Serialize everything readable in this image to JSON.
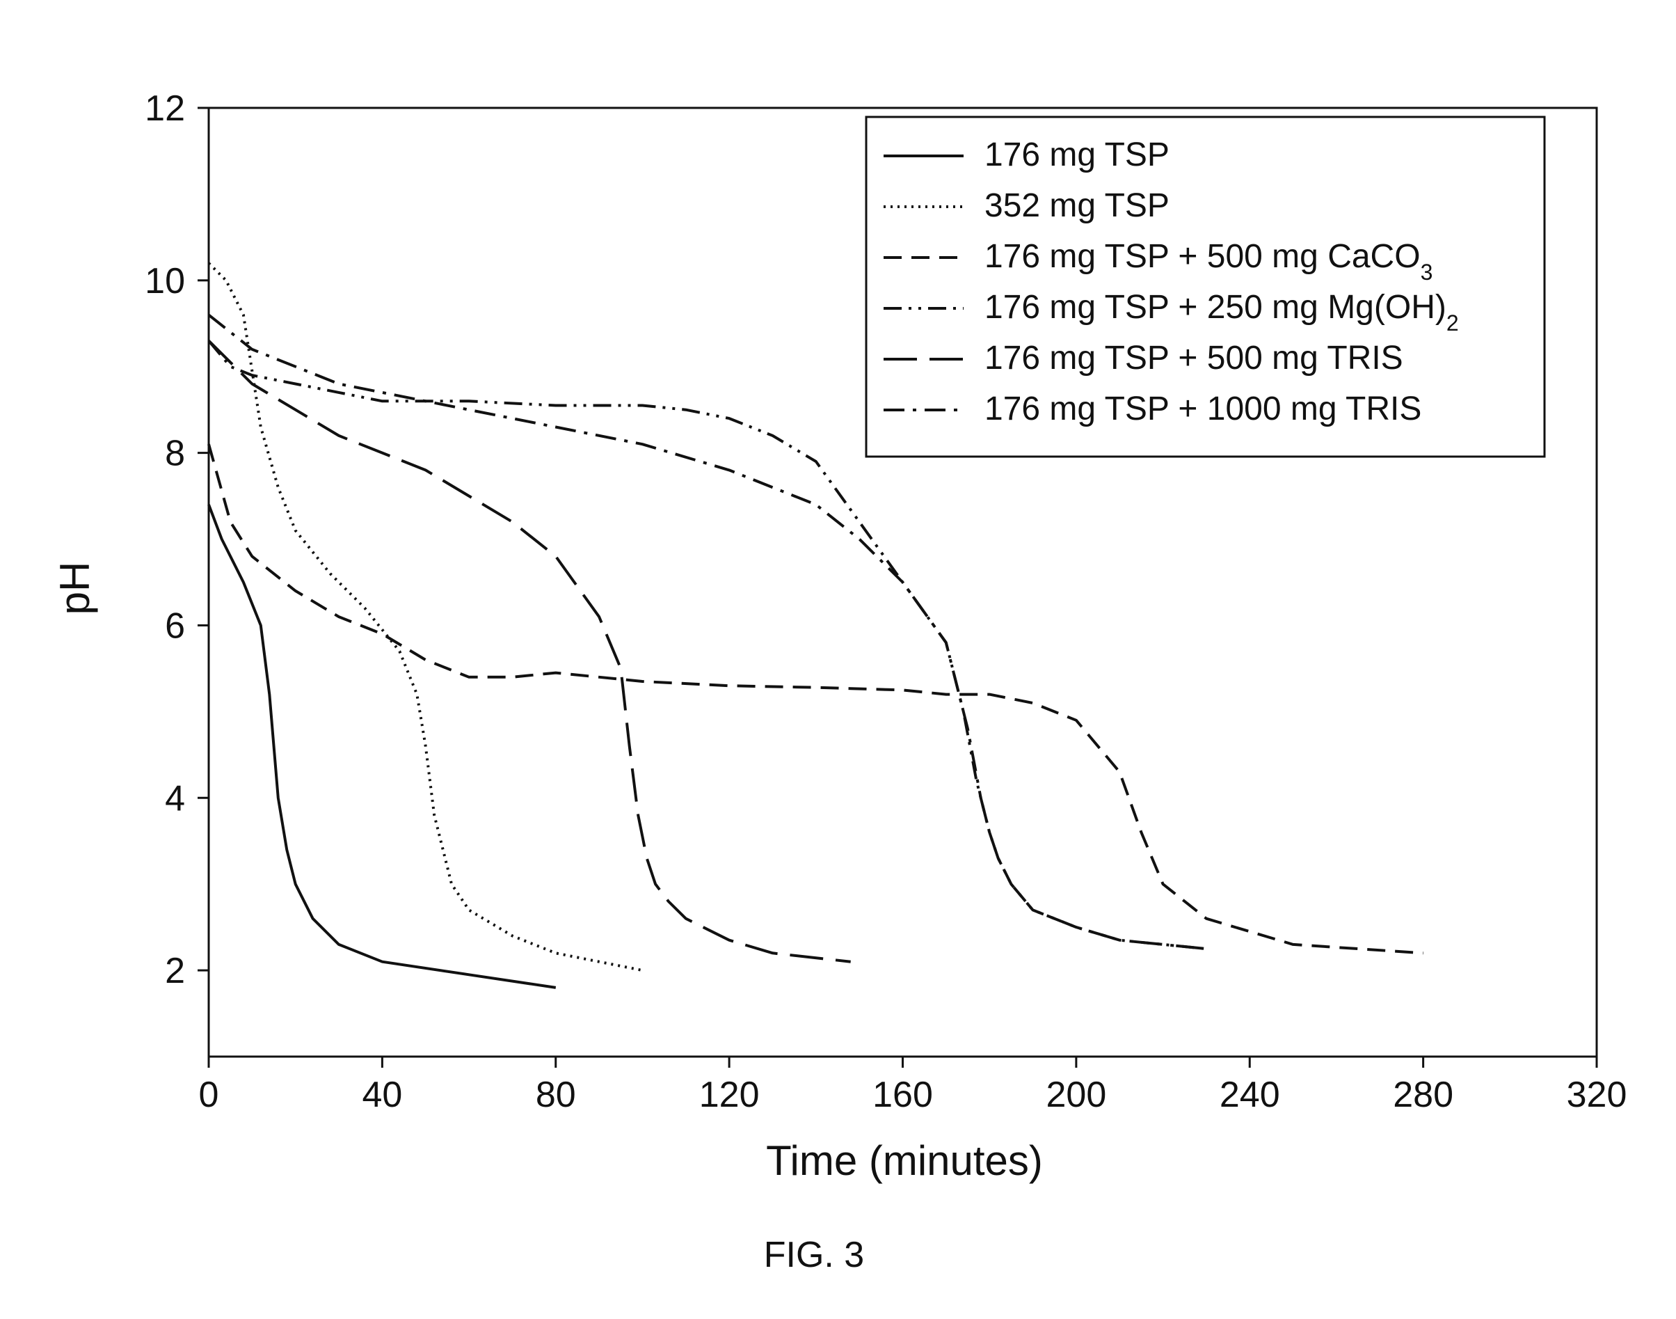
{
  "chart_data": {
    "type": "line",
    "title": "",
    "caption": "FIG. 3",
    "xlabel": "Time (minutes)",
    "ylabel": "pH",
    "xlim": [
      0,
      320
    ],
    "ylim": [
      1,
      12
    ],
    "xticks": [
      0,
      40,
      80,
      120,
      160,
      200,
      240,
      280,
      320
    ],
    "yticks": [
      2,
      4,
      6,
      8,
      10,
      12
    ],
    "legend_position": "top-right",
    "grid": false,
    "series": [
      {
        "name": "176 mg TSP",
        "style": "solid",
        "x": [
          0,
          3,
          8,
          12,
          14,
          16,
          18,
          20,
          24,
          30,
          40,
          60,
          80
        ],
        "y": [
          7.4,
          7.0,
          6.5,
          6.0,
          5.2,
          4.0,
          3.4,
          3.0,
          2.6,
          2.3,
          2.1,
          1.95,
          1.8
        ]
      },
      {
        "name": "352 mg TSP",
        "style": "dotted",
        "x": [
          0,
          4,
          8,
          12,
          16,
          20,
          28,
          36,
          44,
          48,
          50,
          52,
          54,
          56,
          60,
          70,
          80,
          90,
          100
        ],
        "y": [
          10.2,
          10.0,
          9.6,
          8.3,
          7.6,
          7.1,
          6.6,
          6.2,
          5.7,
          5.2,
          4.6,
          3.8,
          3.4,
          3.0,
          2.7,
          2.4,
          2.2,
          2.1,
          2.0
        ]
      },
      {
        "name": "176 mg TSP + 500 mg CaCO",
        "name_sub": "3",
        "style": "dashed",
        "x": [
          0,
          5,
          10,
          20,
          30,
          40,
          50,
          60,
          70,
          80,
          100,
          120,
          140,
          160,
          170,
          180,
          190,
          200,
          210,
          215,
          220,
          230,
          250,
          280
        ],
        "y": [
          8.1,
          7.2,
          6.8,
          6.4,
          6.1,
          5.9,
          5.6,
          5.4,
          5.4,
          5.45,
          5.35,
          5.3,
          5.28,
          5.25,
          5.2,
          5.2,
          5.1,
          4.9,
          4.3,
          3.6,
          3.0,
          2.6,
          2.3,
          2.2
        ]
      },
      {
        "name": "176 mg TSP + 250 mg Mg(OH)",
        "name_sub": "2",
        "style": "dash-dot-dot",
        "x": [
          0,
          5,
          10,
          20,
          30,
          40,
          60,
          80,
          100,
          110,
          120,
          130,
          140,
          150,
          160,
          170,
          174,
          177,
          180,
          182,
          185,
          190,
          200,
          210,
          230
        ],
        "y": [
          9.3,
          9.0,
          8.9,
          8.8,
          8.7,
          8.6,
          8.6,
          8.55,
          8.55,
          8.5,
          8.4,
          8.2,
          7.9,
          7.2,
          6.5,
          5.8,
          5.0,
          4.2,
          3.6,
          3.3,
          3.0,
          2.7,
          2.5,
          2.35,
          2.25
        ]
      },
      {
        "name": "176 mg TSP + 500 mg TRIS",
        "style": "long-dash",
        "x": [
          0,
          10,
          20,
          30,
          40,
          50,
          60,
          70,
          80,
          90,
          95,
          97,
          99,
          101,
          103,
          106,
          110,
          120,
          130,
          148
        ],
        "y": [
          9.3,
          8.8,
          8.5,
          8.2,
          8.0,
          7.8,
          7.5,
          7.2,
          6.8,
          6.1,
          5.5,
          4.6,
          3.8,
          3.3,
          3.0,
          2.8,
          2.6,
          2.35,
          2.2,
          2.1
        ]
      },
      {
        "name": "176 mg TSP + 1000 mg TRIS",
        "style": "dash-dot",
        "x": [
          0,
          10,
          20,
          30,
          40,
          60,
          80,
          100,
          120,
          140,
          150,
          160,
          170,
          175,
          178,
          180,
          182,
          185,
          190,
          200,
          210,
          230
        ],
        "y": [
          9.6,
          9.2,
          9.0,
          8.8,
          8.7,
          8.5,
          8.3,
          8.1,
          7.8,
          7.4,
          7.0,
          6.5,
          5.8,
          4.8,
          4.0,
          3.6,
          3.3,
          3.0,
          2.7,
          2.5,
          2.35,
          2.25
        ]
      }
    ]
  }
}
